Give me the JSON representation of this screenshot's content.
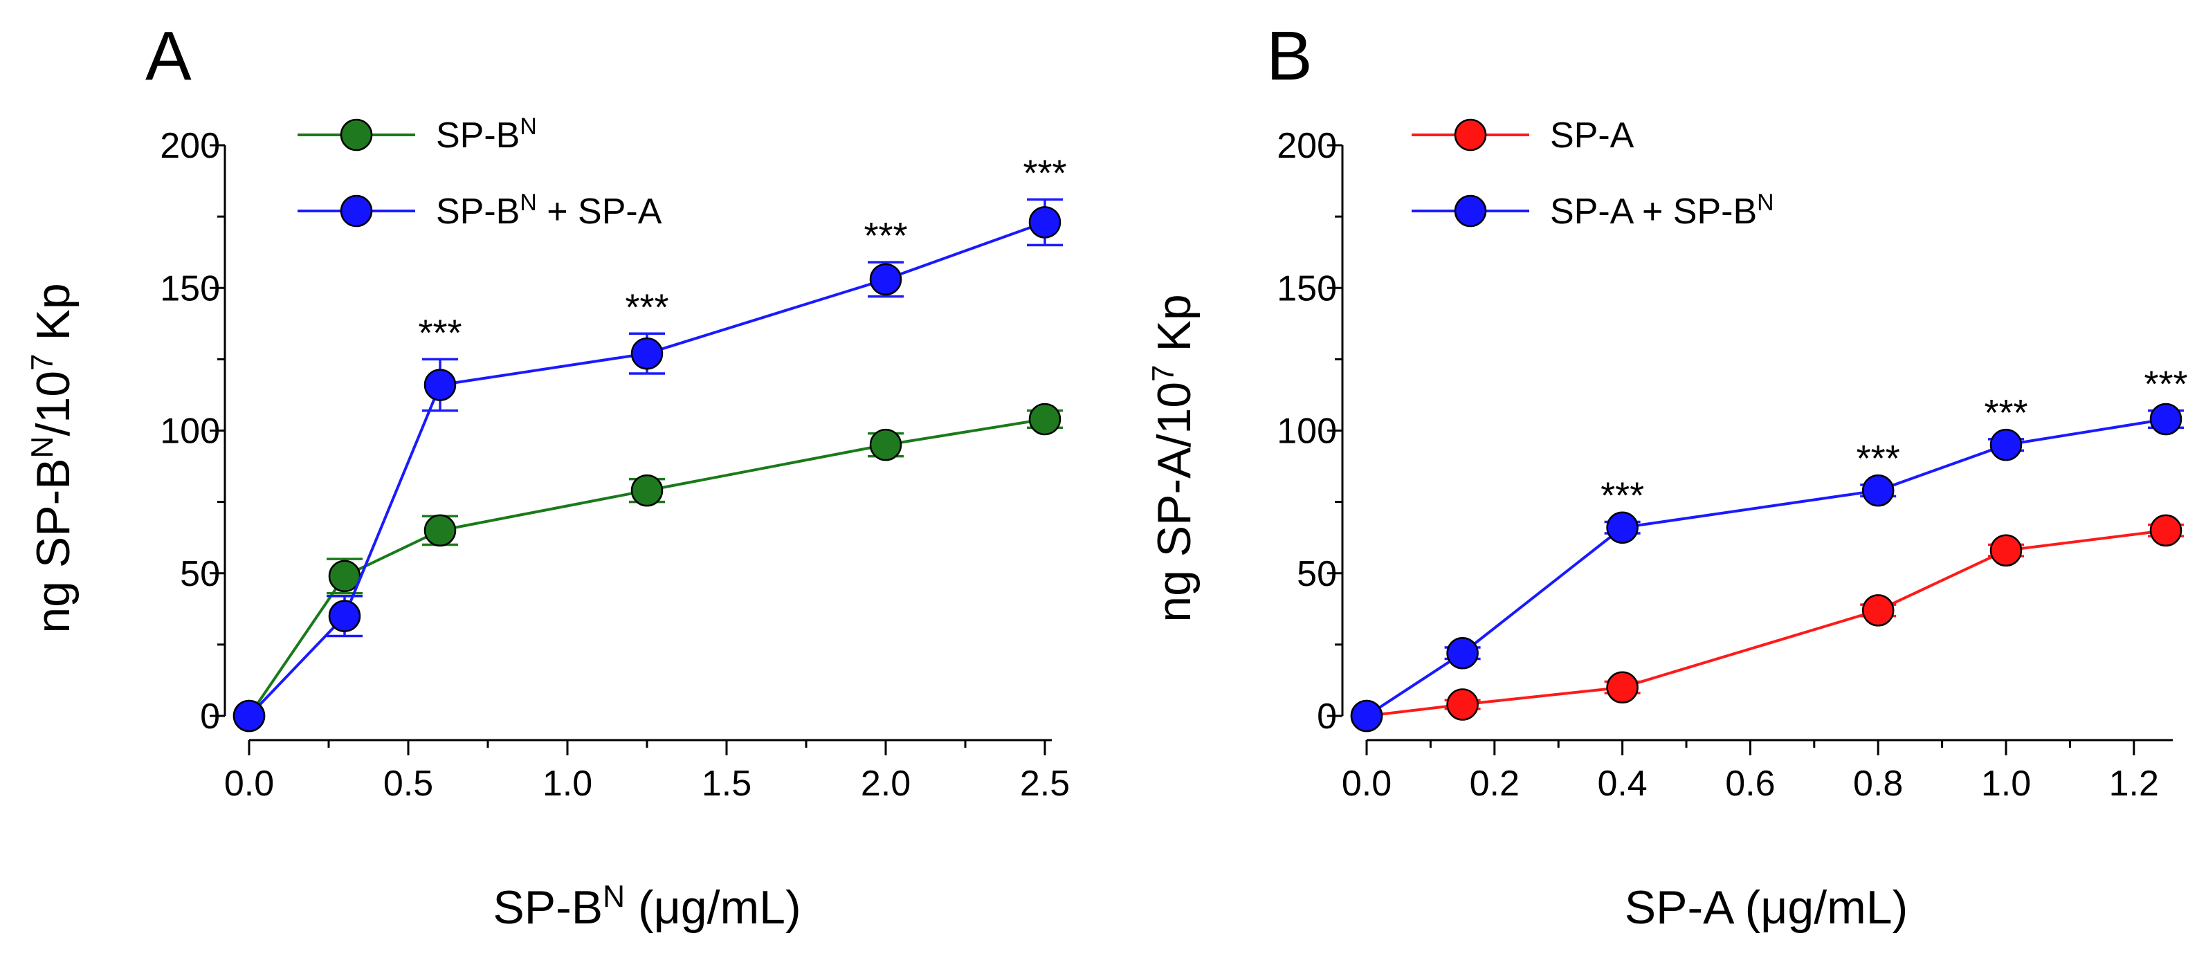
{
  "chart_data": [
    {
      "type": "line",
      "panel_label": "A",
      "xlabel": {
        "main": "SP-B",
        "sup": "N",
        "rest": " (μg/mL)"
      },
      "ylabel": {
        "a": "ng SP-B",
        "sup1": "N",
        "b": "/10",
        "sup2": "7",
        "c": " Kp"
      },
      "xlim": [
        0,
        2.5
      ],
      "ylim": [
        0,
        200
      ],
      "xticks": [
        "0.0",
        "0.5",
        "1.0",
        "1.5",
        "2.0",
        "2.5"
      ],
      "yticks": [
        "0",
        "50",
        "100",
        "150",
        "200"
      ],
      "legend_position": "top-left",
      "significance_label": "***",
      "series": [
        {
          "name": "SP-B",
          "name_sup": "N",
          "name_suffix": "",
          "color": "#1a7a1a",
          "marker_fill": "#1f7a1f",
          "x": [
            0,
            0.3,
            0.6,
            1.25,
            2.0,
            2.5
          ],
          "y": [
            0,
            49,
            65,
            79,
            95,
            104
          ],
          "err": [
            0,
            6,
            5,
            4,
            4,
            3
          ]
        },
        {
          "name": "SP-B",
          "name_sup": "N",
          "name_suffix": " + SP-A",
          "color": "#1a1aff",
          "marker_fill": "#1414ff",
          "x": [
            0,
            0.3,
            0.6,
            1.25,
            2.0,
            2.5
          ],
          "y": [
            0,
            35,
            116,
            127,
            153,
            173
          ],
          "err": [
            0,
            7,
            9,
            7,
            6,
            8
          ]
        }
      ],
      "significance_x": [
        0.6,
        1.25,
        2.0,
        2.5
      ]
    },
    {
      "type": "line",
      "panel_label": "B",
      "xlabel": {
        "main": "SP-A",
        "sup": "",
        "rest": " (μg/mL)"
      },
      "ylabel": {
        "a": "ng SP-A",
        "sup1": "",
        "b": "/10",
        "sup2": "7",
        "c": " Kp"
      },
      "xlim": [
        0,
        1.25
      ],
      "ylim": [
        0,
        200
      ],
      "xticks": [
        "0.0",
        "0.2",
        "0.4",
        "0.6",
        "0.8",
        "1.0",
        "1.2"
      ],
      "yticks": [
        "0",
        "50",
        "100",
        "150",
        "200"
      ],
      "legend_position": "top-left",
      "significance_label": "***",
      "series": [
        {
          "name": "SP-A",
          "name_sup": "",
          "name_suffix": "",
          "color": "#ff1a1a",
          "marker_fill": "#ff1414",
          "x": [
            0,
            0.15,
            0.4,
            0.8,
            1.0,
            1.25
          ],
          "y": [
            0,
            4,
            10,
            37,
            58,
            65
          ],
          "err": [
            0,
            1.5,
            2,
            2,
            2,
            2
          ]
        },
        {
          "name": "SP-A + SP-B",
          "name_sup": "N",
          "name_suffix": "",
          "color": "#1a1aff",
          "marker_fill": "#1414ff",
          "x": [
            0,
            0.15,
            0.4,
            0.8,
            1.0,
            1.25
          ],
          "y": [
            0,
            22,
            66,
            79,
            95,
            104
          ],
          "err": [
            0,
            2,
            2,
            2,
            2,
            3
          ]
        }
      ],
      "significance_x": [
        0.4,
        0.8,
        1.0,
        1.25
      ]
    }
  ]
}
